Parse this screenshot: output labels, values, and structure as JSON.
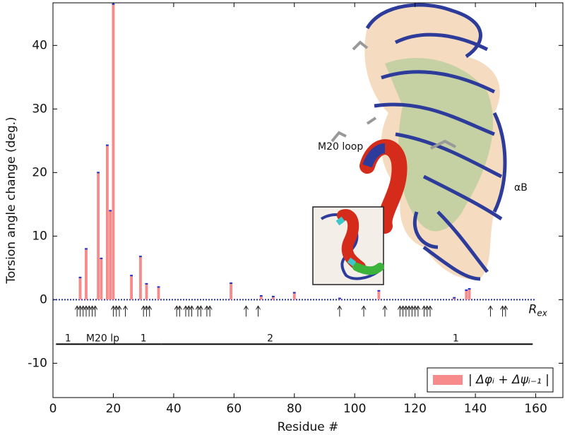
{
  "chart_data": {
    "type": "bar",
    "x_label": "Residue #",
    "y_label": "Torsion angle change (deg.)",
    "xlim": [
      0,
      169
    ],
    "xticks": [
      0,
      20,
      40,
      60,
      80,
      100,
      120,
      140,
      160
    ],
    "ylim": [
      -15.4,
      46.7
    ],
    "yticks": [
      -10,
      0,
      10,
      20,
      30,
      40
    ],
    "series": [
      {
        "name": "| Δφᵢ + Δψᵢ₋₁ |",
        "color": "#f78a8a",
        "cap_color": "#1f2fc8",
        "x": [
          9,
          11,
          15,
          16,
          18,
          19,
          20,
          26,
          29,
          31,
          35,
          59,
          69,
          73,
          80,
          95,
          108,
          133,
          137,
          138
        ],
        "values": [
          3.5,
          8.0,
          20.0,
          6.5,
          24.3,
          14.0,
          46.5,
          3.8,
          6.8,
          2.5,
          2.0,
          2.6,
          0.6,
          0.5,
          1.1,
          0.2,
          1.4,
          0.3,
          1.5,
          1.7
        ]
      }
    ],
    "rex": {
      "label": "R",
      "label_sub": "ex",
      "x": [
        8,
        9,
        10,
        11,
        12,
        13,
        14,
        20,
        21,
        22,
        24,
        30,
        31,
        32,
        41,
        42,
        44,
        45,
        46,
        48,
        49,
        51,
        52,
        64,
        68,
        95,
        103,
        110,
        115,
        116,
        117,
        118,
        119,
        120,
        121,
        123,
        124,
        125,
        145,
        149,
        150
      ]
    },
    "structure_y": -7,
    "segments": [
      {
        "label": "1",
        "start": 1,
        "end": 9
      },
      {
        "label": "M20 lp",
        "start": 9,
        "end": 24
      },
      {
        "label": "1",
        "start": 24,
        "end": 36
      },
      {
        "label": "2",
        "start": 36,
        "end": 108
      },
      {
        "label": "1",
        "start": 108,
        "end": 159
      }
    ],
    "annotations": {
      "m20_loop": "M20 loop",
      "alpha_b": "αB"
    },
    "legend_position": "lower right"
  }
}
